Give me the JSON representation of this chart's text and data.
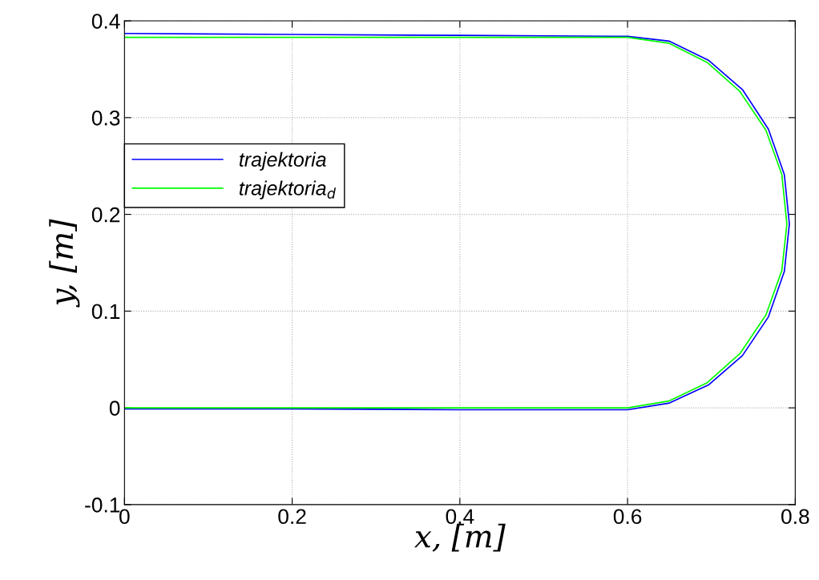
{
  "chart_data": {
    "type": "line",
    "xlabel": "x, [m]",
    "ylabel": "y, [m]",
    "xlim": [
      0,
      0.8
    ],
    "ylim": [
      -0.1,
      0.4
    ],
    "xticks": [
      0,
      0.2,
      0.4,
      0.6,
      0.8
    ],
    "yticks": [
      -0.1,
      0,
      0.1,
      0.2,
      0.3,
      0.4
    ],
    "grid": true,
    "legend": "center left",
    "line_style": "solid",
    "marker": "none",
    "series": [
      {
        "name": "trajektoria",
        "color": "#0000ff",
        "x": [
          0,
          0.2,
          0.4,
          0.6,
          0.65,
          0.697,
          0.737,
          0.768,
          0.787,
          0.793,
          0.787,
          0.768,
          0.737,
          0.697,
          0.65,
          0.6,
          0.4,
          0.2,
          0
        ],
        "values": [
          0.387,
          0.386,
          0.385,
          0.384,
          0.379,
          0.359,
          0.329,
          0.288,
          0.241,
          0.19,
          0.141,
          0.094,
          0.054,
          0.024,
          0.005,
          -0.002,
          -0.002,
          -0.001,
          -0.001
        ]
      },
      {
        "name": "trajektoria$_{d}$",
        "color": "#00ff00",
        "x": [
          0,
          0.2,
          0.4,
          0.6,
          0.649,
          0.695,
          0.734,
          0.765,
          0.784,
          0.79,
          0.784,
          0.765,
          0.734,
          0.695,
          0.649,
          0.6,
          0.4,
          0.2,
          0
        ],
        "values": [
          0.383,
          0.383,
          0.383,
          0.383,
          0.377,
          0.357,
          0.327,
          0.287,
          0.241,
          0.19,
          0.142,
          0.096,
          0.056,
          0.026,
          0.007,
          0,
          0,
          0,
          0
        ]
      }
    ]
  }
}
